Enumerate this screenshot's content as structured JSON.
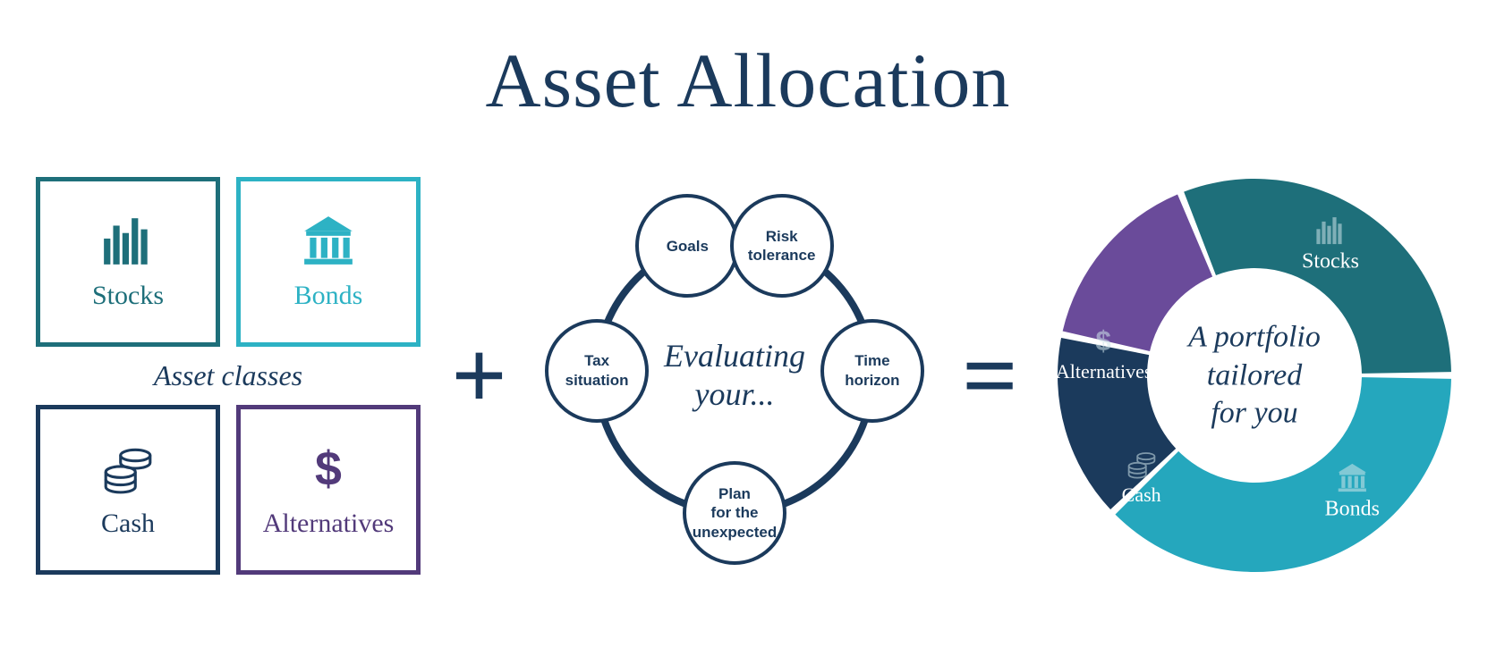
{
  "title": "Asset Allocation",
  "colors": {
    "navy": "#1b3a5c",
    "teal_dark": "#1e6f7a",
    "teal_bright": "#2db2c4",
    "teal_cyan": "#25a7bd",
    "purple": "#523a7a",
    "purple_bright": "#6a4b9a",
    "white": "#ffffff",
    "icon_light": "#cfe5ea"
  },
  "asset_classes": {
    "caption": "Asset classes",
    "items": [
      {
        "key": "stocks",
        "label": "Stocks",
        "border": "#1e6f7a",
        "text": "#1e6f7a",
        "icon": "bars"
      },
      {
        "key": "bonds",
        "label": "Bonds",
        "border": "#2db2c4",
        "text": "#2db2c4",
        "icon": "bank"
      },
      {
        "key": "cash",
        "label": "Cash",
        "border": "#1b3a5c",
        "text": "#1b3a5c",
        "icon": "coins"
      },
      {
        "key": "alternatives",
        "label": "Alternatives",
        "border": "#523a7a",
        "text": "#523a7a",
        "icon": "dollar"
      }
    ]
  },
  "operators": {
    "plus": "+",
    "equals": "="
  },
  "evaluation": {
    "center_line1": "Evaluating",
    "center_line2": "your...",
    "ring_color": "#1b3a5c",
    "ring_radius_pct": 35,
    "bubble_border": "#1b3a5c",
    "bubble_text_color": "#1b3a5c",
    "bubbles": [
      {
        "label": "Goals",
        "angle_deg": -110
      },
      {
        "label": "Risk\ntolerance",
        "angle_deg": -70
      },
      {
        "label": "Time\nhorizon",
        "angle_deg": -2
      },
      {
        "label": "Plan\nfor the\nunexpected",
        "angle_deg": 90
      },
      {
        "label": "Tax\nsituation",
        "angle_deg": 182
      }
    ]
  },
  "donut": {
    "center_line1": "A portfolio",
    "center_line2": "tailored",
    "center_line3": "for you",
    "outer_r": 220,
    "inner_r": 120,
    "gap_deg": 2,
    "segments": [
      {
        "key": "stocks",
        "label": "Stocks",
        "color": "#1e6f7a",
        "value": 28,
        "icon": "bars",
        "label_angle": 30,
        "label_r": 170
      },
      {
        "key": "bonds",
        "label": "Bonds",
        "color": "#25a7bd",
        "value": 34,
        "icon": "bank",
        "label_angle": 140,
        "label_r": 170
      },
      {
        "key": "cash",
        "label": "Cash",
        "color": "#1b3a5c",
        "value": 14,
        "icon": "coins",
        "label_angle": 228,
        "label_r": 170
      },
      {
        "key": "alternatives",
        "label": "Alternatives",
        "color": "#6a4b9a",
        "value": 14,
        "icon": "dollar",
        "label_angle": 278,
        "label_r": 170
      }
    ],
    "start_angle_deg": -22
  }
}
